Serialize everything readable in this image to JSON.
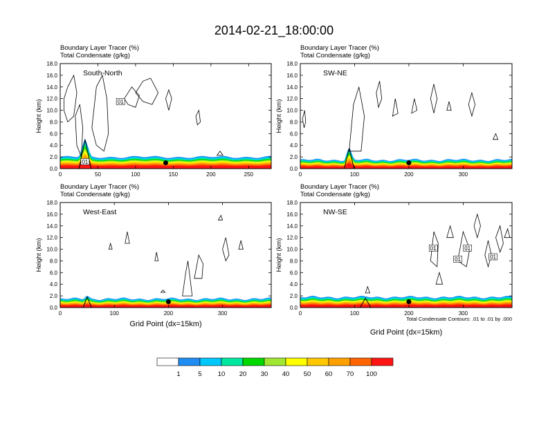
{
  "title": "2014-02-21_18:00:00",
  "colors": {
    "bins": [
      "#ffffff",
      "#1e8cf0",
      "#00c8ff",
      "#00e8a0",
      "#00d800",
      "#a0e632",
      "#ffff00",
      "#ffc800",
      "#ffa000",
      "#ff6400",
      "#ff1414"
    ],
    "contour": "#000000",
    "terrain": "#000000"
  },
  "colorbar": {
    "labels": [
      "1",
      "5",
      "10",
      "20",
      "30",
      "40",
      "50",
      "60",
      "70",
      "100"
    ]
  },
  "contour_note": "Total Condensate Contours: .01 to .01 by .000",
  "chart_data": [
    {
      "type": "heatmap",
      "region": "South-North",
      "title_lines": [
        "Boundary Layer Tracer   (%)",
        "Total Condensate   (g/kg)"
      ],
      "ylabel": "Height (km)",
      "xlabel": "",
      "ylim": [
        0,
        18
      ],
      "xlim": [
        0,
        280
      ],
      "xticks": [
        0,
        50,
        100,
        150,
        200,
        250
      ],
      "xtick_labels": [
        "0",
        "50",
        "100",
        "150",
        "200",
        "250"
      ],
      "yticks": [
        0,
        2,
        4,
        6,
        8,
        10,
        12,
        14,
        16,
        18
      ],
      "ytick_labels": [
        "0.0",
        "2.0",
        "4.0",
        "6.0",
        "8.0",
        "10.0",
        "12.0",
        "14.0",
        "16.0",
        "18.0"
      ],
      "boundary_layer_top_km": 2.0,
      "mountain": {
        "x": 33,
        "peak_km": 5.0,
        "halfwidth": 8
      },
      "marker": {
        "x": 140,
        "y": 1.0
      },
      "contour_labels": [
        {
          "x": 80,
          "y": 11.5,
          "text": "01"
        },
        {
          "x": 33,
          "y": 1.2,
          "text": "01"
        }
      ],
      "cloud_contours": [
        [
          [
            5,
            12
          ],
          [
            10,
            14
          ],
          [
            18,
            16
          ],
          [
            22,
            13
          ],
          [
            18,
            9
          ],
          [
            10,
            8
          ],
          [
            5,
            10
          ]
        ],
        [
          [
            20,
            9
          ],
          [
            26,
            11
          ],
          [
            30,
            7
          ],
          [
            28,
            2
          ],
          [
            22,
            4
          ]
        ],
        [
          [
            42,
            7
          ],
          [
            48,
            14
          ],
          [
            56,
            16
          ],
          [
            62,
            12
          ],
          [
            64,
            6
          ],
          [
            58,
            3
          ],
          [
            48,
            4
          ]
        ],
        [
          [
            85,
            12
          ],
          [
            95,
            14
          ],
          [
            105,
            12.5
          ],
          [
            100,
            10.5
          ],
          [
            90,
            11
          ]
        ],
        [
          [
            100,
            13
          ],
          [
            110,
            15
          ],
          [
            120,
            15.5
          ],
          [
            130,
            13
          ],
          [
            122,
            11
          ],
          [
            110,
            11.5
          ]
        ],
        [
          [
            140,
            12
          ],
          [
            144,
            13.5
          ],
          [
            148,
            12
          ],
          [
            144,
            10
          ]
        ],
        [
          [
            180,
            9
          ],
          [
            184,
            10
          ],
          [
            186,
            8
          ],
          [
            182,
            7.5
          ]
        ],
        [
          [
            208,
            2.3
          ],
          [
            212,
            3
          ],
          [
            216,
            2.3
          ]
        ]
      ]
    },
    {
      "type": "heatmap",
      "region": "SW-NE",
      "title_lines": [
        "Boundary Layer Tracer   (%)",
        "Total Condensate   (g/kg)"
      ],
      "ylabel": "Height (km)",
      "xlabel": "",
      "ylim": [
        0,
        18
      ],
      "xlim": [
        0,
        390
      ],
      "xticks": [
        0,
        100,
        200,
        300
      ],
      "xtick_labels": [
        "0",
        "100",
        "200",
        "300"
      ],
      "yticks": [
        0,
        2,
        4,
        6,
        8,
        10,
        12,
        14,
        16,
        18
      ],
      "ytick_labels": [
        "0.0",
        "2.0",
        "4.0",
        "6.0",
        "8.0",
        "10.0",
        "12.0",
        "14.0",
        "16.0",
        "18.0"
      ],
      "boundary_layer_top_km": 1.5,
      "mountain": {
        "x": 90,
        "peak_km": 3.5,
        "halfwidth": 9
      },
      "marker": {
        "x": 200,
        "y": 1.0
      },
      "contour_labels": [],
      "cloud_contours": [
        [
          [
            4,
            8.5
          ],
          [
            8,
            10
          ],
          [
            10,
            8
          ],
          [
            7,
            7
          ]
        ],
        [
          [
            90,
            3
          ],
          [
            98,
            11
          ],
          [
            108,
            14
          ],
          [
            118,
            9
          ],
          [
            112,
            3
          ]
        ],
        [
          [
            140,
            13
          ],
          [
            146,
            15
          ],
          [
            150,
            12
          ],
          [
            144,
            10.5
          ]
        ],
        [
          [
            170,
            9
          ],
          [
            175,
            12
          ],
          [
            180,
            9.5
          ]
        ],
        [
          [
            205,
            9.5
          ],
          [
            210,
            12
          ],
          [
            215,
            10
          ]
        ],
        [
          [
            240,
            12
          ],
          [
            246,
            14.5
          ],
          [
            252,
            12
          ],
          [
            246,
            9.5
          ]
        ],
        [
          [
            270,
            10
          ],
          [
            274,
            11.5
          ],
          [
            278,
            10
          ]
        ],
        [
          [
            310,
            11
          ],
          [
            316,
            13
          ],
          [
            322,
            11
          ],
          [
            316,
            9
          ]
        ],
        [
          [
            355,
            5
          ],
          [
            360,
            6
          ],
          [
            364,
            5
          ]
        ]
      ]
    },
    {
      "type": "heatmap",
      "region": "West-East",
      "title_lines": [
        "Boundary Layer Tracer   (%)",
        "Total Condensate   (g/kg)"
      ],
      "ylabel": "Height (km)",
      "xlabel": "Grid Point (dx=15km)",
      "ylim": [
        0,
        18
      ],
      "xlim": [
        0,
        390
      ],
      "xticks": [
        0,
        100,
        200,
        300
      ],
      "xtick_labels": [
        "0",
        "100",
        "200",
        "300"
      ],
      "yticks": [
        0,
        2,
        4,
        6,
        8,
        10,
        12,
        14,
        16,
        18
      ],
      "ytick_labels": [
        "0.0",
        "2.0",
        "4.0",
        "6.0",
        "8.0",
        "10.0",
        "12.0",
        "14.0",
        "16.0",
        "18.0"
      ],
      "boundary_layer_top_km": 1.5,
      "mountain": {
        "x": 50,
        "peak_km": 1.8,
        "halfwidth": 8
      },
      "marker": {
        "x": 200,
        "y": 1.0
      },
      "contour_labels": [],
      "cloud_contours": [
        [
          [
            90,
            10
          ],
          [
            93,
            11
          ],
          [
            96,
            10
          ]
        ],
        [
          [
            120,
            11
          ],
          [
            124,
            13
          ],
          [
            128,
            11
          ]
        ],
        [
          [
            175,
            8
          ],
          [
            178,
            9.5
          ],
          [
            181,
            8
          ]
        ],
        [
          [
            226,
            2
          ],
          [
            232,
            6
          ],
          [
            236,
            8
          ],
          [
            240,
            5
          ],
          [
            244,
            2
          ]
        ],
        [
          [
            248,
            5
          ],
          [
            256,
            9
          ],
          [
            264,
            7.5
          ],
          [
            262,
            5
          ]
        ],
        [
          [
            292,
            15
          ],
          [
            297,
            15.8
          ],
          [
            300,
            15
          ]
        ],
        [
          [
            300,
            10
          ],
          [
            306,
            12
          ],
          [
            312,
            9
          ],
          [
            306,
            8
          ]
        ],
        [
          [
            330,
            10
          ],
          [
            334,
            11.5
          ],
          [
            338,
            10
          ]
        ],
        [
          [
            186,
            2.6
          ],
          [
            190,
            3
          ],
          [
            194,
            2.6
          ]
        ]
      ]
    },
    {
      "type": "heatmap",
      "region": "NW-SE",
      "title_lines": [
        "Boundary Layer Tracer   (%)",
        "Total Condensate   (g/kg)"
      ],
      "ylabel": "Height (km)",
      "xlabel": "Grid Point (dx=15km)",
      "ylim": [
        0,
        18
      ],
      "xlim": [
        0,
        390
      ],
      "xticks": [
        0,
        100,
        200,
        300
      ],
      "xtick_labels": [
        "0",
        "100",
        "200",
        "300"
      ],
      "yticks": [
        0,
        2,
        4,
        6,
        8,
        10,
        12,
        14,
        16,
        18
      ],
      "ytick_labels": [
        "0.0",
        "2.0",
        "4.0",
        "6.0",
        "8.0",
        "10.0",
        "12.0",
        "14.0",
        "16.0",
        "18.0"
      ],
      "boundary_layer_top_km": 1.8,
      "mountain": {
        "x": 120,
        "peak_km": 1.6,
        "halfwidth": 10
      },
      "marker": {
        "x": 200,
        "y": 1.0
      },
      "contour_labels": [
        {
          "x": 245,
          "y": 10.2,
          "text": "01"
        },
        {
          "x": 308,
          "y": 10.2,
          "text": "01"
        },
        {
          "x": 290,
          "y": 8.3,
          "text": "01"
        },
        {
          "x": 355,
          "y": 8.7,
          "text": "01"
        }
      ],
      "cloud_contours": [
        [
          [
            120,
            2.5
          ],
          [
            124,
            3.6
          ],
          [
            128,
            2.5
          ]
        ],
        [
          [
            240,
            8
          ],
          [
            246,
            13
          ],
          [
            254,
            11
          ],
          [
            252,
            7
          ]
        ],
        [
          [
            270,
            12
          ],
          [
            276,
            14
          ],
          [
            282,
            12
          ]
        ],
        [
          [
            290,
            8
          ],
          [
            300,
            13
          ],
          [
            312,
            10
          ],
          [
            306,
            7
          ]
        ],
        [
          [
            320,
            14
          ],
          [
            326,
            16
          ],
          [
            332,
            14
          ],
          [
            326,
            12
          ]
        ],
        [
          [
            340,
            9
          ],
          [
            346,
            11.5
          ],
          [
            352,
            9
          ],
          [
            346,
            7
          ]
        ],
        [
          [
            360,
            12
          ],
          [
            368,
            14
          ],
          [
            374,
            11
          ],
          [
            368,
            9.5
          ]
        ],
        [
          [
            250,
            4
          ],
          [
            256,
            6
          ],
          [
            262,
            4
          ]
        ],
        [
          [
            376,
            12
          ],
          [
            382,
            13.5
          ],
          [
            386,
            12
          ]
        ]
      ]
    }
  ]
}
